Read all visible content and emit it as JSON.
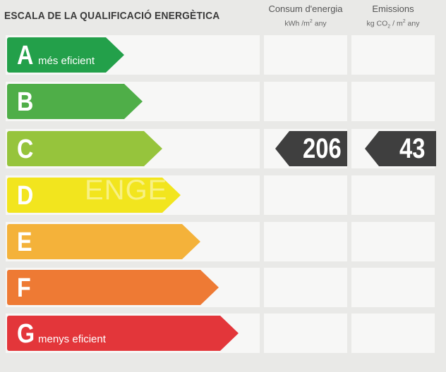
{
  "title": "ESCALA DE LA QUALIFICACIÓ ENERGÈTICA",
  "columns": {
    "consum": {
      "label": "Consum d'energia",
      "unit_pre": "kWh /m",
      "unit_sup": "2",
      "unit_post": " any"
    },
    "emissions": {
      "label": "Emissions",
      "unit_pre": "kg CO",
      "unit_sub": "2",
      "unit_mid": " / m",
      "unit_sup": "2",
      "unit_post": " any"
    }
  },
  "classes": [
    {
      "letter": "A",
      "desc": "més eficient",
      "color": "#23a04a"
    },
    {
      "letter": "B",
      "desc": "",
      "color": "#4fae48"
    },
    {
      "letter": "C",
      "desc": "",
      "color": "#96c43c"
    },
    {
      "letter": "D",
      "desc": "",
      "color": "#f2e51e"
    },
    {
      "letter": "E",
      "desc": "",
      "color": "#f4b23a"
    },
    {
      "letter": "F",
      "desc": "",
      "color": "#ee7a34"
    },
    {
      "letter": "G",
      "desc": "menys eficient",
      "color": "#e3363a"
    }
  ],
  "rating": {
    "class": "C",
    "consum": "206",
    "emissions": "43"
  },
  "watermark": "ENGE"
}
